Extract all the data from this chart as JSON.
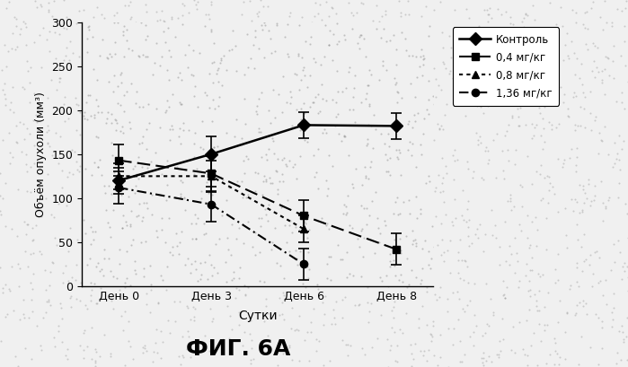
{
  "x_labels": [
    "День 0",
    "День 3",
    "День 6",
    "День 8"
  ],
  "x_positions": [
    0,
    1,
    2,
    3
  ],
  "series": [
    {
      "label": "Контроль",
      "values": [
        120,
        150,
        183,
        182
      ],
      "errors": [
        15,
        20,
        15,
        15
      ],
      "color": "#000000",
      "linestyle": "-",
      "marker": "D",
      "markersize": 7,
      "linewidth": 1.8,
      "dashes": null
    },
    {
      "label": "0,4 мг/кг",
      "values": [
        143,
        128,
        80,
        42
      ],
      "errors": [
        18,
        20,
        18,
        18
      ],
      "color": "#000000",
      "linestyle": "--",
      "marker": "s",
      "markersize": 6,
      "linewidth": 1.5,
      "dashes": [
        7,
        3
      ]
    },
    {
      "label": "0,8 мг/кг",
      "values": [
        125,
        125,
        65,
        null
      ],
      "errors": [
        15,
        18,
        15,
        null
      ],
      "color": "#000000",
      "linestyle": ":",
      "marker": "^",
      "markersize": 6,
      "linewidth": 1.5,
      "dashes": [
        2,
        2
      ]
    },
    {
      "label": "1,36 мг/кг",
      "values": [
        112,
        93,
        25,
        null
      ],
      "errors": [
        18,
        20,
        18,
        null
      ],
      "color": "#000000",
      "linestyle": "-.",
      "marker": "o",
      "markersize": 6,
      "linewidth": 1.5,
      "dashes": [
        5,
        2,
        1,
        2
      ]
    }
  ],
  "ylabel": "Объём опухоли (мм³)",
  "xlabel": "Сутки",
  "title": "ФИГ. 6А",
  "ylim": [
    0,
    300
  ],
  "yticks": [
    0,
    50,
    100,
    150,
    200,
    250,
    300
  ],
  "background_color": "#f0f0f0",
  "figsize": [
    6.99,
    4.09
  ],
  "dpi": 100
}
